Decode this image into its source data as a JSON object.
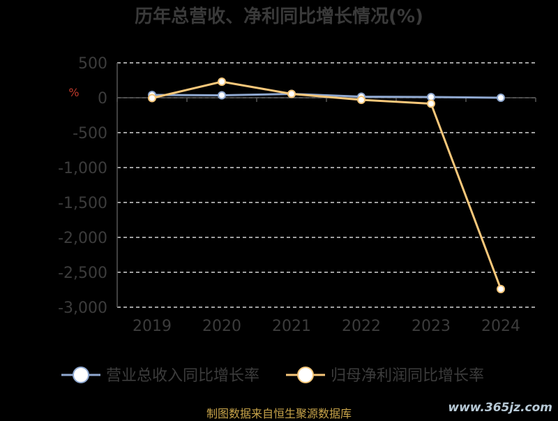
{
  "chart_data": {
    "type": "line",
    "title": "历年总营收、净利同比增长情况(%)",
    "categories": [
      "2019",
      "2020",
      "2021",
      "2022",
      "2023",
      "2024"
    ],
    "ylim": [
      -3000,
      500
    ],
    "yticks": [
      500,
      0,
      -500,
      -1000,
      -1500,
      -2000,
      -2500,
      -3000
    ],
    "ytick_labels": [
      "500",
      "0",
      "-500",
      "-1,000",
      "-1,500",
      "-2,000",
      "-2,500",
      "-3,000"
    ],
    "grid": true,
    "legend_position": "bottom",
    "series": [
      {
        "name": "营业总收入同比增长率",
        "values": [
          40,
          35,
          55,
          15,
          10,
          0
        ],
        "color": "#8fa8d0"
      },
      {
        "name": "归母净利润同比增长率",
        "values": [
          -5,
          230,
          55,
          -30,
          -85,
          -2740
        ],
        "color": "#f7c77a"
      }
    ]
  },
  "source_text": "制图数据来自恒生聚源数据库",
  "watermark_text": "www.365jz.com",
  "y_unit_mark": "%"
}
